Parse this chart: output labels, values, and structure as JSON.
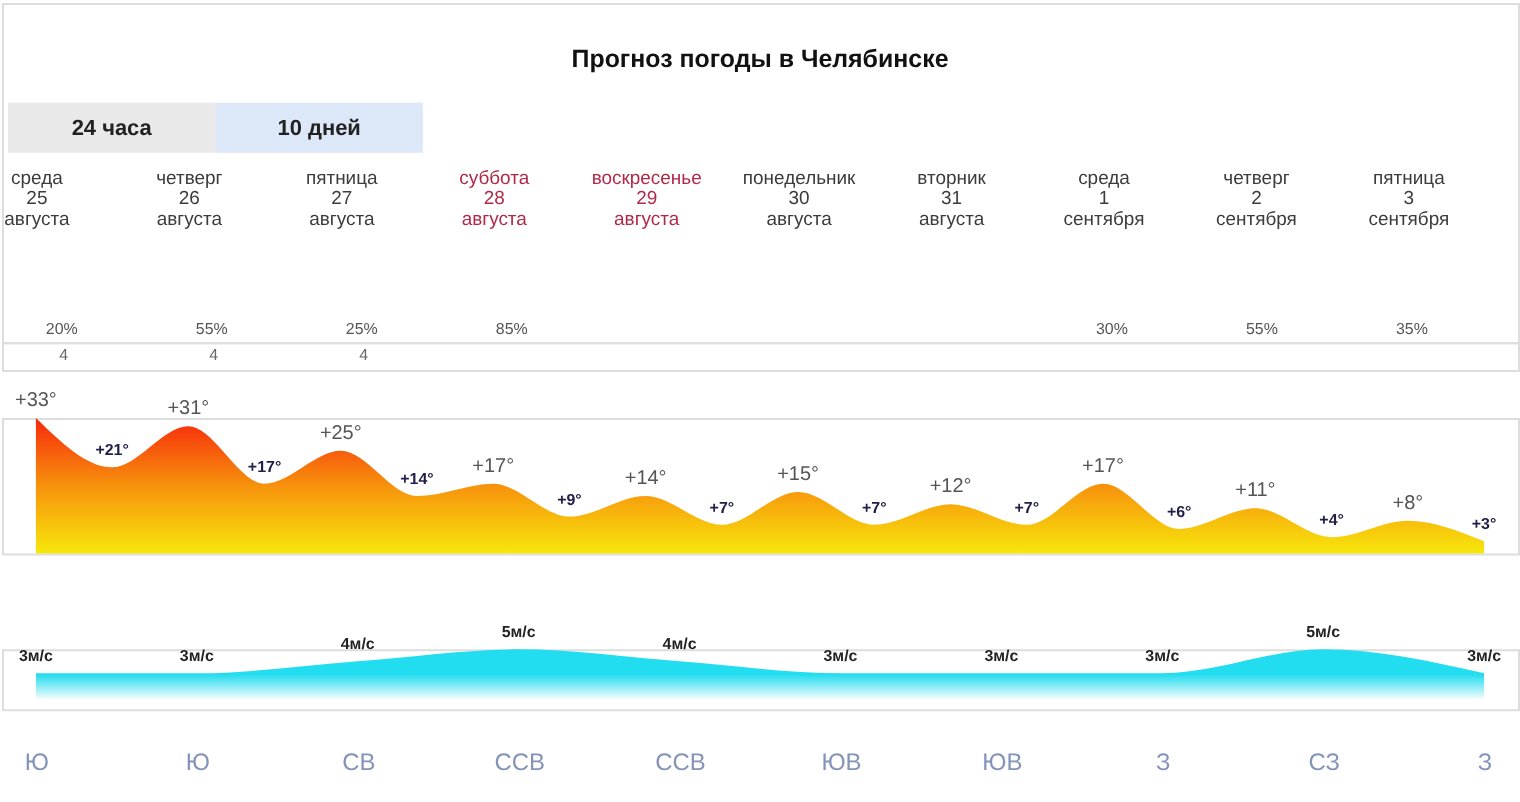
{
  "chart_data": [
    {
      "type": "other",
      "title": "Прогноз погоды в Челябинске",
      "annotations": [
        "24 часа",
        "10 дней"
      ],
      "values": [
        20,
        55,
        25,
        85,
        null,
        null,
        null,
        30,
        55,
        35
      ],
      "value_labels": [
        "20%",
        "55%",
        "25%",
        "85%",
        null,
        null,
        null,
        "30%",
        "55%",
        "35%"
      ],
      "color": "#555555"
    },
    {
      "type": "other",
      "values": [
        4,
        4,
        4,
        null,
        null,
        null,
        null,
        null,
        null,
        null
      ],
      "value_labels": [
        "4",
        "4",
        "4",
        null,
        null,
        null,
        null,
        null,
        null,
        null
      ],
      "color": "#666666"
    },
    {
      "type": "area",
      "categories": [
        "среда 25 августа",
        null,
        "четверг 26 августа",
        null,
        "пятница 27 августа",
        null,
        "суббота 28 августа",
        null,
        "воскресенье 29 августа",
        null,
        "понедельник 30 августа",
        null,
        "вторник 31 августа",
        null,
        "среда 1 сентября",
        null,
        "четверг 2 сентября",
        null,
        "пятница 3 сентября",
        null
      ],
      "values": [
        33,
        21,
        31,
        17,
        25,
        14,
        17,
        9,
        14,
        7,
        15,
        7,
        12,
        7,
        17,
        6,
        11,
        4,
        8,
        3
      ],
      "value_labels": [
        "+33°",
        "+21°",
        "+31°",
        "+17°",
        "+25°",
        "+14°",
        "+17°",
        "+9°",
        "+14°",
        "+7°",
        "+15°",
        "+7°",
        "+12°",
        "+7°",
        "+17°",
        "+6°",
        "+11°",
        "+4°",
        "+8°",
        "+3°"
      ],
      "color": "#f7920c",
      "ylim": [
        0,
        33
      ],
      "tick_labels": "x"
    },
    {
      "type": "area",
      "categories": [
        "Ю",
        "Ю",
        "СВ",
        "ССВ",
        "ССВ",
        "ЮВ",
        "ЮВ",
        "З",
        "СЗ",
        "З"
      ],
      "values": [
        3,
        3,
        4,
        5,
        4,
        3,
        3,
        3,
        5,
        3
      ],
      "value_labels": [
        "3м/с",
        "3м/с",
        "4м/с",
        "5м/с",
        "4м/с",
        "3м/с",
        "3м/с",
        "3м/с",
        "5м/с",
        "3м/с"
      ],
      "color": "#22dcef",
      "ylim": [
        0,
        5
      ],
      "tick_labels": "x"
    }
  ]
}
